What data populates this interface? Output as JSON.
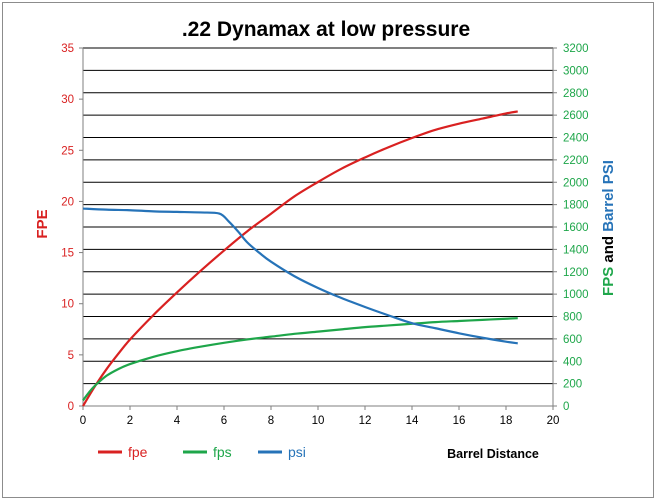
{
  "chart_data": {
    "type": "line",
    "title": ".22 Dynamax at low pressure",
    "xlabel": "Barrel Distance",
    "ylabel_left": "FPE",
    "ylabel_right_parts": [
      {
        "text": "FPS",
        "series": "fps"
      },
      {
        "text": "and",
        "series": null
      },
      {
        "text": "Barrel PSI",
        "series": "psi"
      }
    ],
    "xlim": [
      0,
      20
    ],
    "xticks": [
      0,
      2,
      4,
      6,
      8,
      10,
      12,
      14,
      16,
      18,
      20
    ],
    "ylim_left": [
      0,
      35
    ],
    "yticks_left": [
      0,
      5,
      10,
      15,
      20,
      25,
      30,
      35
    ],
    "ylim_right": [
      0,
      3200
    ],
    "yticks_right": [
      0,
      200,
      400,
      600,
      800,
      1000,
      1200,
      1400,
      1600,
      1800,
      2000,
      2200,
      2400,
      2600,
      2800,
      3000,
      3200
    ],
    "grid": "horizontal",
    "legend_position": "bottom-left",
    "colors": {
      "fpe": "#d92121",
      "fps": "#1ea64a",
      "psi": "#2673b8",
      "left_axis": "#d92121",
      "right_axis": "#1ea64a",
      "grid": "#000000"
    },
    "series": [
      {
        "key": "fpe",
        "name": "fpe",
        "axis": "left",
        "x": [
          0,
          0.5,
          1,
          1.5,
          2,
          3,
          4,
          5,
          6,
          7,
          8,
          9,
          10,
          11,
          12,
          13,
          14,
          15,
          16,
          17,
          18,
          18.5
        ],
        "values": [
          0,
          1.9,
          3.6,
          5.1,
          6.5,
          8.9,
          11.1,
          13.2,
          15.2,
          17.1,
          18.8,
          20.5,
          21.9,
          23.2,
          24.3,
          25.3,
          26.2,
          27.0,
          27.6,
          28.1,
          28.6,
          28.8
        ]
      },
      {
        "key": "fps",
        "name": "fps",
        "axis": "right",
        "x": [
          0,
          0.25,
          0.5,
          1,
          1.5,
          2,
          3,
          4,
          5,
          6,
          7,
          8,
          9,
          10,
          11,
          12,
          13,
          14,
          15,
          16,
          17,
          18,
          18.5
        ],
        "values": [
          50,
          120,
          180,
          270,
          330,
          375,
          440,
          490,
          530,
          565,
          595,
          620,
          645,
          665,
          685,
          705,
          720,
          735,
          750,
          760,
          770,
          780,
          785
        ]
      },
      {
        "key": "psi",
        "name": "psi",
        "axis": "right",
        "x": [
          0,
          1,
          2,
          3,
          4,
          5,
          5.8,
          6.2,
          6.6,
          7,
          7.5,
          8,
          9,
          10,
          11,
          12,
          13,
          14,
          15,
          16,
          17,
          18,
          18.5
        ],
        "values": [
          1765,
          1755,
          1750,
          1740,
          1735,
          1730,
          1720,
          1650,
          1560,
          1460,
          1370,
          1290,
          1160,
          1055,
          965,
          885,
          810,
          740,
          695,
          650,
          610,
          575,
          560
        ]
      }
    ]
  }
}
